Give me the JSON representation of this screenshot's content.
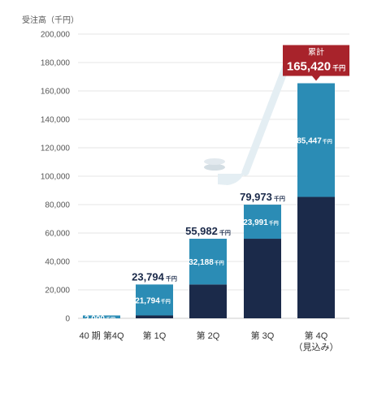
{
  "chart_data": {
    "type": "bar",
    "stacked": true,
    "ylabel": "受注高（千円）",
    "ylim": [
      0,
      200000
    ],
    "yticks": [
      "0",
      "20,000",
      "40,000",
      "60,000",
      "80,000",
      "100,000",
      "120,000",
      "140,000",
      "160,000",
      "180,000",
      "200,000"
    ],
    "grid": true,
    "categories": [
      "40 期 第4Q",
      "第 1Q",
      "第 2Q",
      "第 3Q",
      "第 4Q（見込み）"
    ],
    "category_lines": [
      [
        "40 期 第4Q"
      ],
      [
        "第 1Q"
      ],
      [
        "第 2Q"
      ],
      [
        "第 3Q"
      ],
      [
        "第 4Q",
        "（見込み）"
      ]
    ],
    "series": [
      {
        "values": [
          0,
          2000,
          23794,
          55982,
          85447
        ],
        "color": "#1b2a4a"
      },
      {
        "values": [
          2000,
          21794,
          32188,
          23991,
          79973
        ],
        "color": "#2b8cb5"
      }
    ],
    "segment_labels": [
      [
        "2,000",
        ""
      ],
      [
        "21,794",
        ""
      ],
      [
        "32,188",
        ""
      ],
      [
        "23,991",
        ""
      ],
      [
        "85,447",
        ""
      ]
    ],
    "totals": [
      "",
      "23,794",
      "55,982",
      "79,973",
      ""
    ],
    "unit_suffix": "千円",
    "callout": {
      "title": "累計",
      "value": "165,420",
      "suffix": "千円",
      "color": "#a8232b"
    }
  }
}
